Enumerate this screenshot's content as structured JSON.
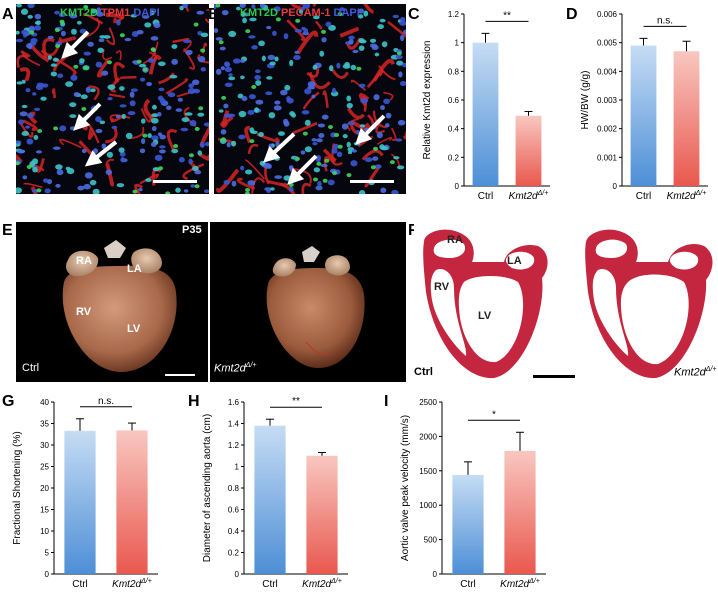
{
  "panels": {
    "A": {
      "letter": "A",
      "stains": [
        {
          "text": "KMT2D",
          "color": "#2ec84a"
        },
        {
          "text": "TPM1",
          "color": "#e83a3a"
        },
        {
          "text": "DAPI",
          "color": "#3f5bd6"
        }
      ]
    },
    "B": {
      "letter": "B",
      "stains": [
        {
          "text": "KMT2D",
          "color": "#2ec84a"
        },
        {
          "text": "PECAM-1",
          "color": "#e83a3a"
        },
        {
          "text": "DAPI",
          "color": "#3f5bd6"
        }
      ]
    },
    "C": {
      "letter": "C"
    },
    "D": {
      "letter": "D"
    },
    "E": {
      "letter": "E",
      "age": "P35",
      "labels": [
        "RA",
        "LA",
        "RV",
        "LV"
      ],
      "ctrl": "Ctrl",
      "mut_base": "Kmt2d",
      "mut_sup": "Δ/+"
    },
    "F": {
      "letter": "F",
      "labels": [
        "RA",
        "LA",
        "RV",
        "LV"
      ],
      "ctrl": "Ctrl",
      "mut_base": "Kmt2d",
      "mut_sup": "Δ/+"
    },
    "G": {
      "letter": "G"
    },
    "H": {
      "letter": "H"
    },
    "I": {
      "letter": "I"
    }
  },
  "chart_data": [
    {
      "id": "C",
      "type": "bar",
      "categories": [
        "Ctrl",
        "Kmt2d"
      ],
      "category_sup": [
        "",
        "Δ/+"
      ],
      "values": [
        1.0,
        0.49
      ],
      "errors": [
        0.065,
        0.03
      ],
      "ylabel": "Relative Kmt2d expression",
      "ylim": [
        0,
        1.2
      ],
      "yticks": [
        "0",
        "0.2",
        "0.4",
        "0.6",
        "0.8",
        "1",
        "1.2"
      ],
      "significance": "**"
    },
    {
      "id": "D",
      "type": "bar",
      "categories": [
        "Ctrl",
        "Kmt2d"
      ],
      "category_sup": [
        "",
        "Δ/+"
      ],
      "values": [
        0.0049,
        0.0047
      ],
      "errors": [
        0.00025,
        0.00035
      ],
      "ylabel": "HW/BW (g/g)",
      "ylim": [
        0,
        0.006
      ],
      "yticks": [
        "0",
        "0.001",
        "0.002",
        "0.003",
        "0.004",
        "0.005",
        "0.006"
      ],
      "significance": "n.s."
    },
    {
      "id": "G",
      "type": "bar",
      "categories": [
        "Ctrl",
        "Kmt2d"
      ],
      "category_sup": [
        "",
        "Δ/+"
      ],
      "values": [
        33.3,
        33.4
      ],
      "errors": [
        2.8,
        1.7
      ],
      "ylabel": "Fractional Shortening (%)",
      "ylim": [
        0,
        40
      ],
      "yticks": [
        "0",
        "5",
        "10",
        "15",
        "20",
        "25",
        "30",
        "35",
        "40"
      ],
      "significance": "n.s."
    },
    {
      "id": "H",
      "type": "bar",
      "categories": [
        "Ctrl",
        "Kmt2d"
      ],
      "category_sup": [
        "",
        "Δ/+"
      ],
      "values": [
        1.38,
        1.1
      ],
      "errors": [
        0.06,
        0.03
      ],
      "ylabel": "Diameter of ascending aorta (cm)",
      "ylim": [
        0,
        1.6
      ],
      "yticks": [
        "0",
        "0.2",
        "0.4",
        "0.6",
        "0.8",
        "1",
        "1.2",
        "1.4",
        "1.6"
      ],
      "significance": "**"
    },
    {
      "id": "I",
      "type": "bar",
      "categories": [
        "Ctrl",
        "Kmt2d"
      ],
      "category_sup": [
        "",
        "Δ/+"
      ],
      "values": [
        1440,
        1790
      ],
      "errors": [
        190,
        270
      ],
      "ylabel": "Aortic valve peak velocity (mm/s)",
      "ylim": [
        0,
        2500
      ],
      "yticks": [
        "0",
        "500",
        "1000",
        "1500",
        "2000",
        "2500"
      ],
      "significance": "*"
    }
  ]
}
